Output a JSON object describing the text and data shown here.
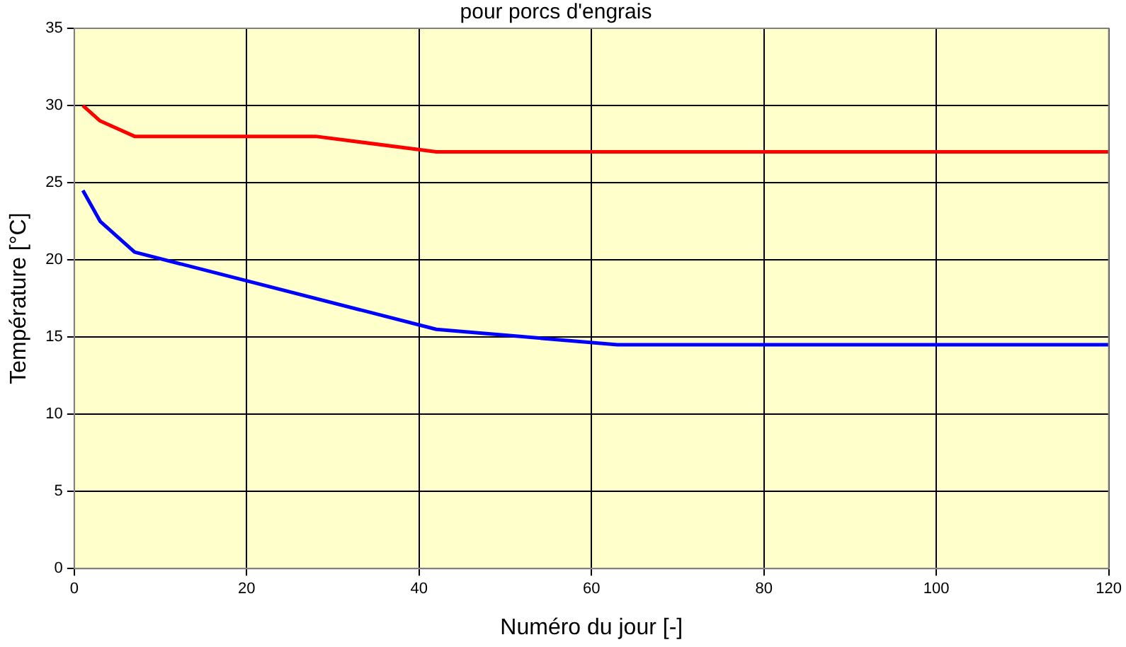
{
  "chart_data": {
    "type": "line",
    "title": "pour porcs d'engrais",
    "xlabel": "Numéro du jour [-]",
    "ylabel": "Température [°C]",
    "series": [
      {
        "color": "#ff0000",
        "x": [
          1,
          3,
          7,
          28,
          42,
          120
        ],
        "values": [
          30,
          29,
          28,
          28,
          27,
          27
        ]
      },
      {
        "color": "#0000ff",
        "x": [
          1,
          3,
          7,
          42,
          63,
          120
        ],
        "values": [
          24.5,
          22.5,
          20.5,
          15.5,
          14.5,
          14.5
        ]
      }
    ],
    "xlim": [
      0,
      120
    ],
    "xticks": [
      0,
      20,
      40,
      60,
      80,
      100,
      120
    ],
    "ylim": [
      0,
      35
    ],
    "yticks": [
      0,
      5,
      10,
      15,
      20,
      25,
      30,
      35
    ],
    "grid": true,
    "legend": false,
    "marker": "none",
    "line_style": "solid"
  }
}
